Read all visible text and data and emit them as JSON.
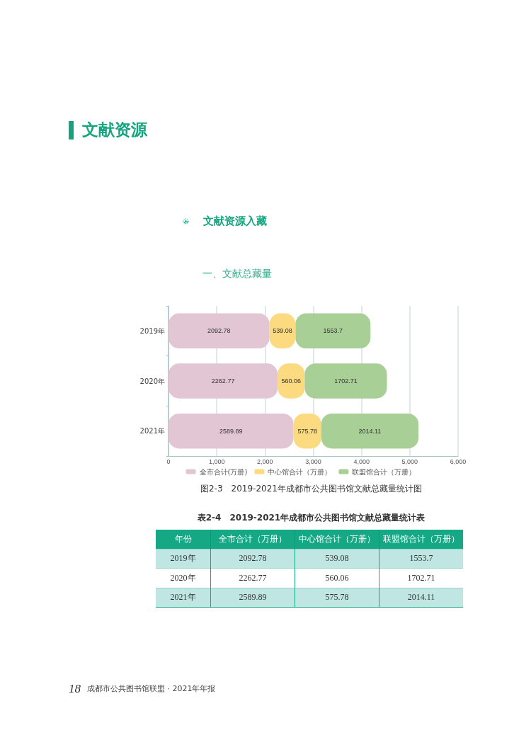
{
  "chart_data": [
    {
      "type": "bar",
      "orientation": "horizontal",
      "stacked": true,
      "title": "文献资源",
      "subtitle": "文献资源入藏",
      "categories": [
        "2019年",
        "2020年",
        "2021年"
      ],
      "series": [
        {
          "name": "全市合计(万册)",
          "color": "#e2c6d4",
          "values": [
            2092.78,
            2262.77,
            2589.89
          ]
        },
        {
          "name": "中心馆合计（万册）",
          "color": "#fcda80",
          "values": [
            539.08,
            560.06,
            575.78
          ]
        },
        {
          "name": "联盟馆合计（万册）",
          "color": "#a8cf96",
          "values": [
            1553.7,
            1702.71,
            2014.11
          ]
        }
      ],
      "xlim": [
        0,
        6000
      ],
      "xticks": [
        0,
        {
          "value": 1000,
          "label": "1,000"
        },
        {
          "value": 2000,
          "label": "2,000"
        },
        {
          "value": 3000,
          "label": "3,000"
        },
        {
          "value": 4000,
          "label": "4,000"
        },
        {
          "value": 5000,
          "label": "5,000"
        },
        {
          "value": 6000,
          "label": "6,000"
        }
      ],
      "grid": "x",
      "legend": "bottom",
      "data_labels": true,
      "annotations": [
        "一、文献总藏量",
        "图2-3　2019-2021年成都市公共图书馆文献总藏量统计图"
      ]
    },
    {
      "type": "other",
      "title": "表2-4　2019-2021年成都市公共图书馆文献总藏量统计表",
      "xlabel": "年份",
      "categories": [
        "2019年",
        "2020年",
        "2021年"
      ],
      "series": [
        {
          "name": "全市合计（万册）",
          "colors": [
            "#c0e6e4",
            "#ffffff",
            "#c0e6e4"
          ],
          "values": [
            2092.78,
            2262.77,
            2589.89
          ]
        },
        {
          "name": "中心馆合计（万册）",
          "colors": [
            "#c0e6e4",
            "#ffffff",
            "#c0e6e4"
          ],
          "values": [
            539.08,
            560.06,
            575.78
          ]
        },
        {
          "name": "联盟馆合计（万册）",
          "colors": [
            "#c0e6e4",
            "#ffffff",
            "#c0e6e4"
          ],
          "values": [
            1553.7,
            1702.71,
            2014.11
          ]
        }
      ],
      "data_labels": true,
      "annotations": [
        "18",
        "成都市公共图书馆联盟 · 2021年年报"
      ]
    }
  ]
}
